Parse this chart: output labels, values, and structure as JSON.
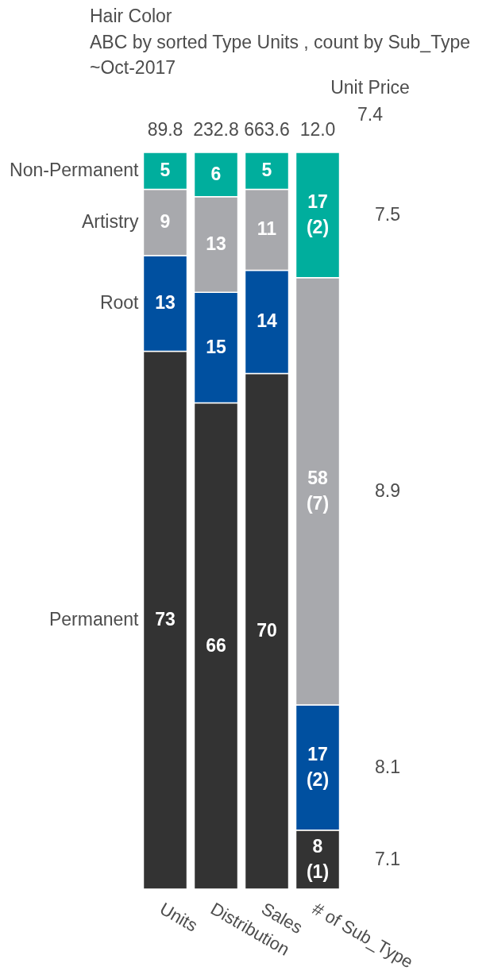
{
  "chart_data": {
    "type": "bar",
    "title": "Hair Color",
    "subtitle": "ABC by sorted Type Units , count by Sub_Type\n~Oct-2017",
    "categories": [
      "Units",
      "Distribution",
      "Sales",
      "# of Sub_Type"
    ],
    "stacked": true,
    "ylim": [
      0,
      100
    ],
    "tick_labels": "x",
    "series": [
      {
        "name": "Permanent",
        "color": "#333333",
        "values": [
          73,
          66,
          70,
          8
        ],
        "value_labels": [
          "73",
          "66",
          "70",
          "8\n(1)"
        ]
      },
      {
        "name": "Root",
        "color": "#0050a0",
        "values": [
          13,
          15,
          14,
          17
        ],
        "value_labels": [
          "13",
          "15",
          "14",
          "17\n(2)"
        ]
      },
      {
        "name": "Artistry",
        "color": "#a8a9ad",
        "values": [
          9,
          13,
          11,
          58
        ],
        "value_labels": [
          "9",
          "13",
          "11",
          "58\n(7)"
        ]
      },
      {
        "name": "Non-Permanent",
        "color": "#00ae9d",
        "values": [
          5,
          6,
          5,
          17
        ],
        "value_labels": [
          "5",
          "6",
          "5",
          "17\n(2)"
        ]
      }
    ],
    "annotations": [
      {
        "text": "89.8",
        "x": "Units",
        "y": 100
      },
      {
        "text": "232.8",
        "x": "Distribution",
        "y": 100
      },
      {
        "text": "663.6",
        "x": "Sales",
        "y": 100
      },
      {
        "text": "12.0",
        "x": "# of Sub_Type",
        "y": 100
      },
      "Unit Price",
      "7.4",
      "7.5",
      "8.9",
      "8.1",
      "7.1"
    ]
  }
}
